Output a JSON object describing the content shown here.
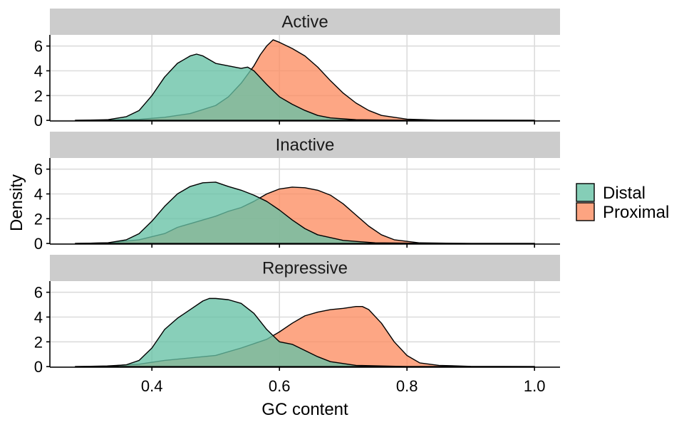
{
  "chart_data": {
    "type": "area",
    "xlabel": "GC content",
    "ylabel": "Density",
    "xlim": [
      0.24,
      1.04
    ],
    "ylim": [
      -0.05,
      6.9
    ],
    "x_ticks": [
      0.4,
      0.6,
      0.8,
      1.0
    ],
    "x_tick_labels": [
      "0.4",
      "0.6",
      "0.8",
      "1.0"
    ],
    "y_ticks": [
      0,
      2,
      4,
      6
    ],
    "y_tick_labels": [
      "0",
      "2",
      "4",
      "6"
    ],
    "grid": true,
    "legend_position": "right",
    "legend": [
      {
        "key": "distal",
        "label": "Distal",
        "color": "#66C2A5"
      },
      {
        "key": "proximal",
        "label": "Proximal",
        "color": "#FC8D62"
      }
    ],
    "panels": [
      {
        "title": "Active",
        "series": [
          {
            "key": "proximal",
            "color": "#FC8D62",
            "x": [
              0.28,
              0.33,
              0.38,
              0.42,
              0.46,
              0.5,
              0.52,
              0.54,
              0.56,
              0.57,
              0.58,
              0.59,
              0.6,
              0.62,
              0.64,
              0.66,
              0.68,
              0.7,
              0.72,
              0.74,
              0.76,
              0.8,
              0.85,
              1.0
            ],
            "y": [
              0,
              0.02,
              0.08,
              0.25,
              0.55,
              1.2,
              1.9,
              3.0,
              4.4,
              5.3,
              6.0,
              6.5,
              6.3,
              5.8,
              5.2,
              4.3,
              3.2,
              2.2,
              1.4,
              0.8,
              0.4,
              0.1,
              0.02,
              0
            ]
          },
          {
            "key": "distal",
            "color": "#66C2A5",
            "x": [
              0.28,
              0.33,
              0.36,
              0.38,
              0.4,
              0.42,
              0.44,
              0.46,
              0.47,
              0.48,
              0.5,
              0.52,
              0.54,
              0.55,
              0.56,
              0.58,
              0.6,
              0.62,
              0.64,
              0.66,
              0.68,
              0.72,
              0.8,
              1.0
            ],
            "y": [
              0,
              0.05,
              0.3,
              0.8,
              2.0,
              3.5,
              4.6,
              5.2,
              5.35,
              5.2,
              4.6,
              4.4,
              4.2,
              4.3,
              4.0,
              2.9,
              1.9,
              1.3,
              0.8,
              0.4,
              0.2,
              0.05,
              0,
              0
            ]
          }
        ]
      },
      {
        "title": "Inactive",
        "series": [
          {
            "key": "proximal",
            "color": "#FC8D62",
            "x": [
              0.28,
              0.33,
              0.38,
              0.42,
              0.44,
              0.46,
              0.48,
              0.5,
              0.52,
              0.54,
              0.56,
              0.58,
              0.6,
              0.62,
              0.64,
              0.66,
              0.68,
              0.7,
              0.72,
              0.74,
              0.76,
              0.78,
              0.82,
              0.9,
              1.0
            ],
            "y": [
              0,
              0.05,
              0.3,
              0.8,
              1.3,
              1.6,
              1.9,
              2.2,
              2.6,
              2.9,
              3.4,
              4.0,
              4.4,
              4.55,
              4.5,
              4.3,
              3.9,
              3.2,
              2.3,
              1.4,
              0.7,
              0.3,
              0.05,
              0,
              0
            ]
          },
          {
            "key": "distal",
            "color": "#66C2A5",
            "x": [
              0.28,
              0.33,
              0.36,
              0.38,
              0.4,
              0.42,
              0.44,
              0.46,
              0.48,
              0.5,
              0.52,
              0.54,
              0.56,
              0.58,
              0.6,
              0.62,
              0.64,
              0.66,
              0.7,
              0.75,
              0.85,
              1.0
            ],
            "y": [
              0,
              0.05,
              0.3,
              0.8,
              1.8,
              3.0,
              4.0,
              4.6,
              4.9,
              4.95,
              4.6,
              4.3,
              3.9,
              3.4,
              2.7,
              1.9,
              1.2,
              0.7,
              0.25,
              0.05,
              0,
              0
            ]
          }
        ]
      },
      {
        "title": "Repressive",
        "series": [
          {
            "key": "proximal",
            "color": "#FC8D62",
            "x": [
              0.28,
              0.33,
              0.38,
              0.42,
              0.46,
              0.5,
              0.54,
              0.58,
              0.6,
              0.62,
              0.64,
              0.66,
              0.68,
              0.7,
              0.72,
              0.73,
              0.74,
              0.76,
              0.78,
              0.8,
              0.82,
              0.85,
              0.9,
              1.0
            ],
            "y": [
              0,
              0.05,
              0.2,
              0.5,
              0.7,
              0.9,
              1.5,
              2.2,
              2.8,
              3.5,
              4.1,
              4.4,
              4.6,
              4.7,
              4.85,
              4.85,
              4.6,
              3.5,
              2.0,
              0.9,
              0.3,
              0.1,
              0.02,
              0
            ]
          },
          {
            "key": "distal",
            "color": "#66C2A5",
            "x": [
              0.28,
              0.33,
              0.36,
              0.38,
              0.4,
              0.42,
              0.44,
              0.46,
              0.48,
              0.49,
              0.5,
              0.52,
              0.54,
              0.56,
              0.58,
              0.6,
              0.62,
              0.64,
              0.66,
              0.68,
              0.72,
              0.8,
              1.0
            ],
            "y": [
              0,
              0.02,
              0.15,
              0.5,
              1.5,
              3.0,
              3.9,
              4.6,
              5.3,
              5.5,
              5.5,
              5.4,
              5.1,
              4.3,
              3.0,
              2.0,
              1.8,
              1.3,
              0.8,
              0.4,
              0.1,
              0,
              0
            ]
          }
        ]
      }
    ]
  }
}
